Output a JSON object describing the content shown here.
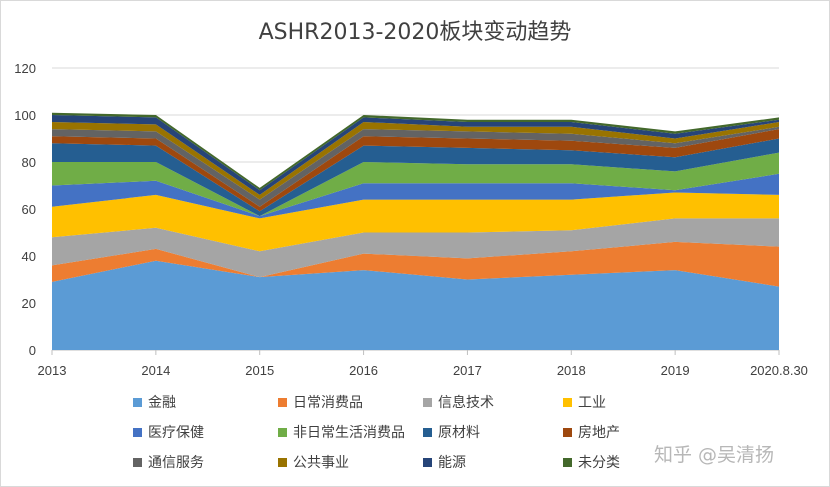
{
  "chart_data": {
    "type": "area",
    "stacked": true,
    "title": "ASHR2013-2020板块变动趋势",
    "xlabel": "",
    "ylabel": "",
    "ylim": [
      0,
      120
    ],
    "yticks": [
      0,
      20,
      40,
      60,
      80,
      100,
      120
    ],
    "grid": true,
    "legend_position": "bottom",
    "categories": [
      "2013",
      "2014",
      "2015",
      "2016",
      "2017",
      "2018",
      "2019",
      "2020.8.30"
    ],
    "series": [
      {
        "name": "金融",
        "color": "#5B9BD5",
        "values": [
          29,
          38,
          31,
          34,
          30,
          32,
          34,
          27
        ]
      },
      {
        "name": "日常消费品",
        "color": "#ED7D31",
        "values": [
          7,
          5,
          0,
          7,
          9,
          10,
          12,
          17
        ]
      },
      {
        "name": "信息技术",
        "color": "#A5A5A5",
        "values": [
          12,
          9,
          11,
          9,
          11,
          9,
          10,
          12
        ]
      },
      {
        "name": "工业",
        "color": "#FFC000",
        "values": [
          13,
          14,
          14,
          14,
          14,
          13,
          11,
          10
        ]
      },
      {
        "name": "医疗保健",
        "color": "#4472C4",
        "values": [
          9,
          6,
          1,
          7,
          7,
          7,
          1,
          9
        ]
      },
      {
        "name": "非日常生活消费品",
        "color": "#70AD47",
        "values": [
          10,
          8,
          0,
          9,
          8,
          8,
          8,
          9
        ]
      },
      {
        "name": "原材料",
        "color": "#255E91",
        "values": [
          8,
          7,
          2,
          7,
          7,
          6,
          6,
          6
        ]
      },
      {
        "name": "房地产",
        "color": "#9E480E",
        "values": [
          3,
          3,
          2,
          4,
          4,
          4,
          4,
          4
        ]
      },
      {
        "name": "通信服务",
        "color": "#636363",
        "values": [
          3,
          3,
          3,
          3,
          3,
          3,
          2,
          1
        ]
      },
      {
        "name": "公共事业",
        "color": "#997300",
        "values": [
          3,
          3,
          2,
          3,
          2,
          3,
          2,
          2
        ]
      },
      {
        "name": "能源",
        "color": "#264478",
        "values": [
          3,
          3,
          2,
          2,
          2,
          2,
          2,
          1
        ]
      },
      {
        "name": "未分类",
        "color": "#43682B",
        "values": [
          1,
          1,
          1,
          1,
          1,
          1,
          1,
          1
        ]
      }
    ]
  },
  "watermark": "知乎 @吴清扬"
}
